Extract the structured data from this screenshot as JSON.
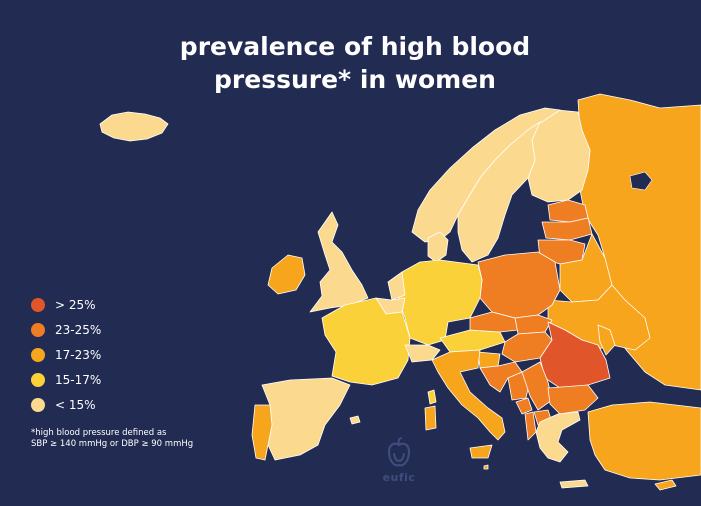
{
  "title": {
    "line1": "prevalence of high blood",
    "line2": "pressure* in women"
  },
  "legend": [
    {
      "label": "> 25%",
      "color": "#e0552a"
    },
    {
      "label": "23-25%",
      "color": "#ef7d22"
    },
    {
      "label": "17-23%",
      "color": "#f7a51c"
    },
    {
      "label": "15-17%",
      "color": "#fbd13a"
    },
    {
      "label": "< 15%",
      "color": "#fbd98e"
    }
  ],
  "footnote": {
    "line1": "*high blood pressure defined as",
    "line2": "SBP ≥ 140 mmHg or DBP ≥ 90 mmHg"
  },
  "logo": {
    "text": "eufic",
    "icon": "apple-icon"
  },
  "colors": {
    "background": "#222b52",
    "border": "#ffffff"
  },
  "map_regions": [
    {
      "name": "iceland",
      "class": "< 15%"
    },
    {
      "name": "norway",
      "class": "< 15%"
    },
    {
      "name": "sweden",
      "class": "< 15%"
    },
    {
      "name": "finland",
      "class": "< 15%"
    },
    {
      "name": "denmark",
      "class": "< 15%"
    },
    {
      "name": "united-kingdom",
      "class": "< 15%"
    },
    {
      "name": "ireland",
      "class": "17-23%"
    },
    {
      "name": "netherlands",
      "class": "< 15%"
    },
    {
      "name": "belgium",
      "class": "< 15%"
    },
    {
      "name": "france",
      "class": "15-17%"
    },
    {
      "name": "spain",
      "class": "< 15%"
    },
    {
      "name": "portugal",
      "class": "17-23%"
    },
    {
      "name": "switzerland",
      "class": "< 15%"
    },
    {
      "name": "germany",
      "class": "15-17%"
    },
    {
      "name": "italy",
      "class": "17-23%"
    },
    {
      "name": "poland",
      "class": "23-25%"
    },
    {
      "name": "czechia",
      "class": "23-25%"
    },
    {
      "name": "austria",
      "class": "15-17%"
    },
    {
      "name": "slovakia",
      "class": "23-25%"
    },
    {
      "name": "hungary",
      "class": "23-25%"
    },
    {
      "name": "slovenia",
      "class": "17-23%"
    },
    {
      "name": "croatia",
      "class": "23-25%"
    },
    {
      "name": "bosnia",
      "class": "23-25%"
    },
    {
      "name": "serbia",
      "class": "23-25%"
    },
    {
      "name": "montenegro",
      "class": "23-25%"
    },
    {
      "name": "albania",
      "class": "23-25%"
    },
    {
      "name": "north-macedonia",
      "class": "23-25%"
    },
    {
      "name": "romania",
      "class": "> 25%"
    },
    {
      "name": "bulgaria",
      "class": "23-25%"
    },
    {
      "name": "greece",
      "class": "< 15%"
    },
    {
      "name": "moldova",
      "class": "17-23%"
    },
    {
      "name": "ukraine",
      "class": "17-23%"
    },
    {
      "name": "belarus",
      "class": "17-23%"
    },
    {
      "name": "lithuania",
      "class": "23-25%"
    },
    {
      "name": "latvia",
      "class": "23-25%"
    },
    {
      "name": "estonia",
      "class": "23-25%"
    },
    {
      "name": "russia",
      "class": "17-23%"
    },
    {
      "name": "turkey",
      "class": "17-23%"
    },
    {
      "name": "cyprus",
      "class": "17-23%"
    },
    {
      "name": "malta",
      "class": "17-23%"
    }
  ]
}
